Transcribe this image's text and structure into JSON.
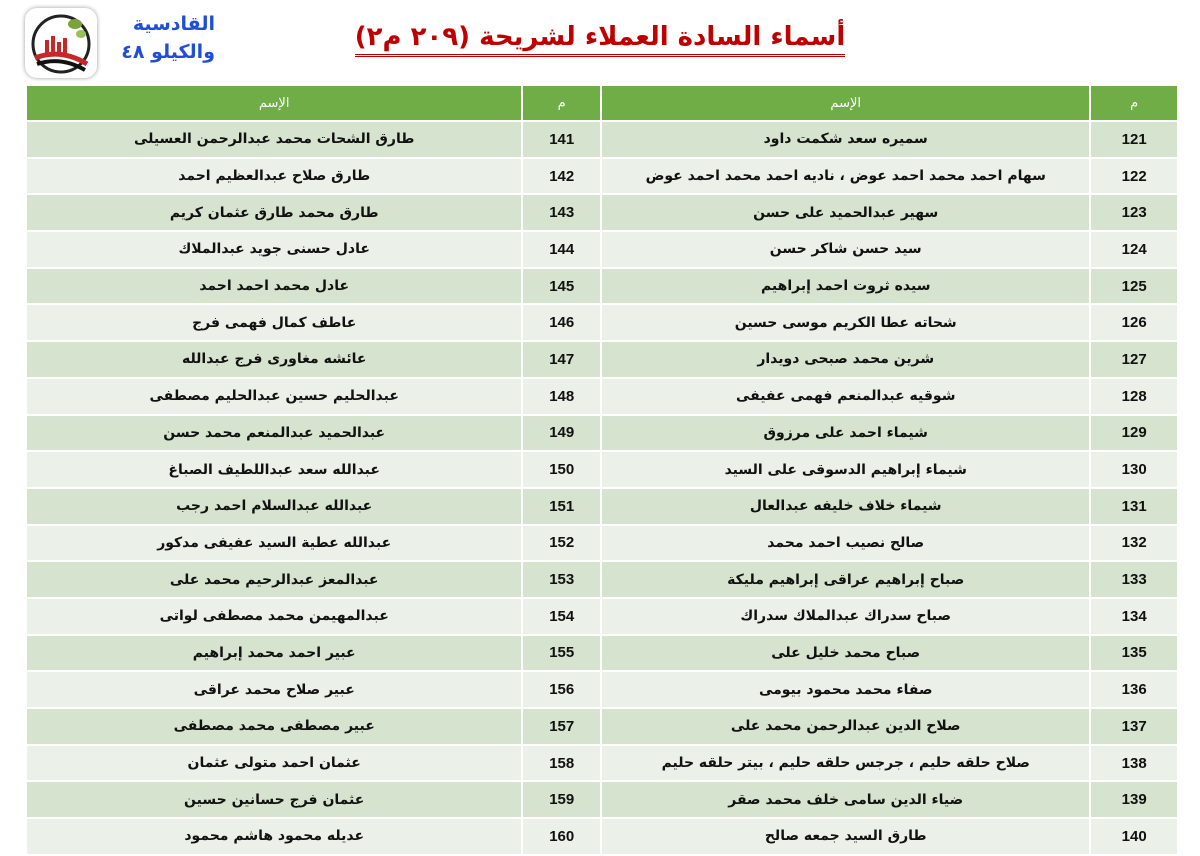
{
  "header": {
    "title": "أسماء السادة العملاء لشريحة (٢٠٩ م٢)",
    "org_line1": "القادسية",
    "org_line2": "والكيلو ٤٨",
    "logo": "organization-logo"
  },
  "table": {
    "columns": [
      "م",
      "الإسم",
      "م",
      "الإسم"
    ],
    "header_color": "#70ad47",
    "rows": [
      {
        "n1": "121",
        "name1": "سميره سعد شكمت داود",
        "n2": "141",
        "name2": "طارق الشحات محمد عبدالرحمن العسيلى"
      },
      {
        "n1": "122",
        "name1": "سهام احمد محمد احمد عوض ، ناديه احمد محمد احمد عوض",
        "n2": "142",
        "name2": "طارق صلاح عبدالعظيم احمد"
      },
      {
        "n1": "123",
        "name1": "سهير عبدالحميد على حسن",
        "n2": "143",
        "name2": "طارق محمد طارق عثمان كريم"
      },
      {
        "n1": "124",
        "name1": "سيد حسن شاكر حسن",
        "n2": "144",
        "name2": "عادل حسنى جويد عبدالملاك"
      },
      {
        "n1": "125",
        "name1": "سيده ثروت احمد إبراهيم",
        "n2": "145",
        "name2": "عادل محمد احمد احمد"
      },
      {
        "n1": "126",
        "name1": "شحاته عطا الكريم موسى حسين",
        "n2": "146",
        "name2": "عاطف كمال فهمى فرج"
      },
      {
        "n1": "127",
        "name1": "شرين محمد صبحى دويدار",
        "n2": "147",
        "name2": "عائشه مغاورى فرج عبدالله"
      },
      {
        "n1": "128",
        "name1": "شوقيه عبدالمنعم فهمى عفيفى",
        "n2": "148",
        "name2": "عبدالحليم حسين عبدالحليم مصطفى"
      },
      {
        "n1": "129",
        "name1": "شيماء احمد على مرزوق",
        "n2": "149",
        "name2": "عبدالحميد عبدالمنعم محمد حسن"
      },
      {
        "n1": "130",
        "name1": "شيماء إبراهيم الدسوقى على السيد",
        "n2": "150",
        "name2": "عبدالله سعد عبداللطيف الصباغ"
      },
      {
        "n1": "131",
        "name1": "شيماء خلاف خليفه عبدالعال",
        "n2": "151",
        "name2": "عبدالله عبدالسلام احمد رجب"
      },
      {
        "n1": "132",
        "name1": "صالح نصيب احمد محمد",
        "n2": "152",
        "name2": "عبدالله عطية السيد عفيفى مدكور"
      },
      {
        "n1": "133",
        "name1": "صباح إبراهيم عراقى إبراهيم مليكة",
        "n2": "153",
        "name2": "عبدالمعز عبدالرحيم محمد على"
      },
      {
        "n1": "134",
        "name1": "صباح سدراك عبدالملاك سدراك",
        "n2": "154",
        "name2": "عبدالمهيمن محمد مصطفى لواتى"
      },
      {
        "n1": "135",
        "name1": "صباح محمد خليل على",
        "n2": "155",
        "name2": "عبير احمد محمد إبراهيم"
      },
      {
        "n1": "136",
        "name1": "صفاء محمد محمود بيومى",
        "n2": "156",
        "name2": "عبير صلاح محمد عراقى"
      },
      {
        "n1": "137",
        "name1": "صلاح الدين عبدالرحمن محمد على",
        "n2": "157",
        "name2": "عبير مصطفى محمد مصطفى"
      },
      {
        "n1": "138",
        "name1": "صلاح حلقه حليم ، جرجس حلقه حليم ، بيتر حلقه حليم",
        "n2": "158",
        "name2": "عثمان احمد متولى عثمان"
      },
      {
        "n1": "139",
        "name1": "ضياء الدين سامى خلف محمد صقر",
        "n2": "159",
        "name2": "عثمان فرج حسانين حسين"
      },
      {
        "n1": "140",
        "name1": "طارق السيد جمعه صالح",
        "n2": "160",
        "name2": "عديله محمود هاشم محمود"
      }
    ]
  }
}
